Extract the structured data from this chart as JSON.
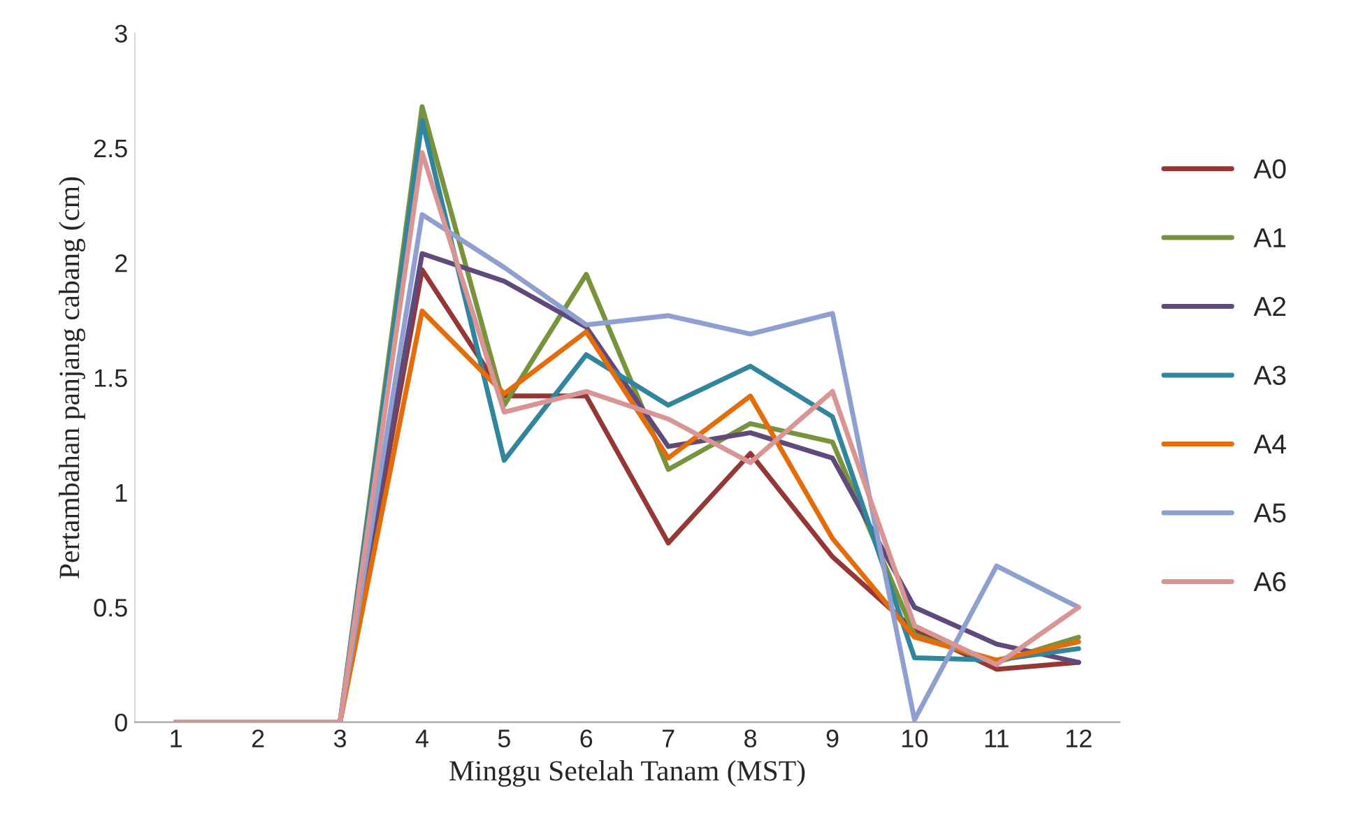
{
  "chart_data": {
    "type": "line",
    "xlabel": "Minggu Setelah Tanam (MST)",
    "ylabel": "Pertambahan panjang cabang (cm)",
    "categories": [
      "1",
      "2",
      "3",
      "4",
      "5",
      "6",
      "7",
      "8",
      "9",
      "10",
      "11",
      "12"
    ],
    "ylim": [
      0,
      3
    ],
    "yticks": [
      0,
      0.5,
      1,
      1.5,
      2,
      2.5,
      3
    ],
    "grid": false,
    "legend": "right",
    "marker": "none",
    "line_style": "solid",
    "series": [
      {
        "name": "A0",
        "color": "#953735",
        "values": [
          0,
          0,
          0,
          1.97,
          1.42,
          1.42,
          0.78,
          1.17,
          0.72,
          0.4,
          0.23,
          0.26
        ]
      },
      {
        "name": "A1",
        "color": "#77933c",
        "values": [
          0,
          0,
          0,
          2.68,
          1.38,
          1.95,
          1.1,
          1.3,
          1.22,
          0.38,
          0.26,
          0.37
        ]
      },
      {
        "name": "A2",
        "color": "#604a7b",
        "values": [
          0,
          0,
          0,
          2.04,
          1.92,
          1.72,
          1.2,
          1.26,
          1.15,
          0.5,
          0.34,
          0.26
        ]
      },
      {
        "name": "A3",
        "color": "#31859c",
        "values": [
          0,
          0,
          0,
          2.62,
          1.14,
          1.6,
          1.38,
          1.55,
          1.33,
          0.28,
          0.27,
          0.32
        ]
      },
      {
        "name": "A4",
        "color": "#e46c0a",
        "values": [
          0,
          0,
          0,
          1.79,
          1.43,
          1.7,
          1.15,
          1.42,
          0.8,
          0.37,
          0.27,
          0.35
        ]
      },
      {
        "name": "A5",
        "color": "#8e9fd0",
        "values": [
          0,
          0,
          0,
          2.21,
          1.98,
          1.73,
          1.77,
          1.69,
          1.78,
          0.01,
          0.68,
          0.5
        ]
      },
      {
        "name": "A6",
        "color": "#d99594",
        "values": [
          0,
          0,
          0,
          2.48,
          1.35,
          1.44,
          1.32,
          1.13,
          1.44,
          0.42,
          0.25,
          0.5
        ]
      }
    ]
  }
}
